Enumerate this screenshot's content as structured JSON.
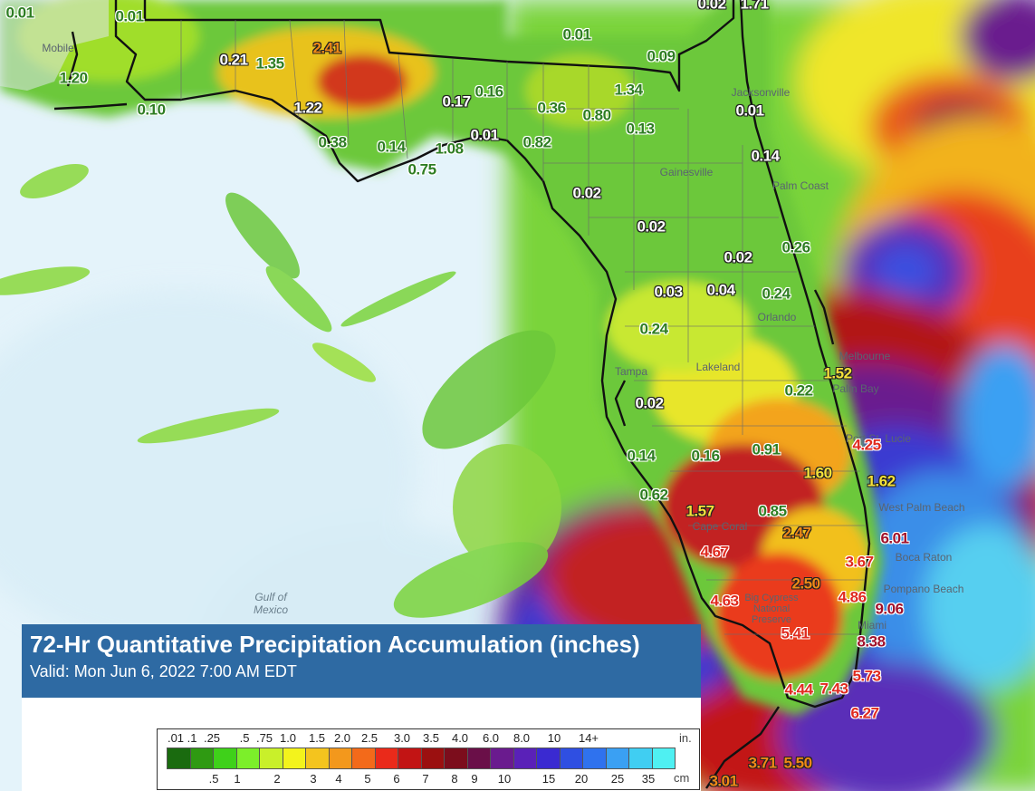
{
  "title": "72-Hr Quantitative Precipitation Accumulation (inches)",
  "subtitle": "Valid: Mon Jun 6, 2022 7:00 AM EDT",
  "water_label": [
    "Gulf of",
    "Mexico"
  ],
  "places": [
    "Mobile",
    "Jacksonville",
    "Gainesville",
    "Palm Coast",
    "Orlando",
    "Tampa",
    "Lakeland",
    "Melbourne",
    "Palm Bay",
    "Port St. Lucie",
    "West Palm Beach",
    "Boca Raton",
    "Pompano Beach",
    "Miami",
    "Cape Coral",
    "Big Cypress National Preserve"
  ],
  "legend": {
    "inch_unit": "in.",
    "cm_unit": "cm",
    "inch_labels": [
      ".01",
      ".1",
      ".25",
      ".5",
      ".75",
      "1.0",
      "1.5",
      "2.0",
      "2.5",
      "3.0",
      "3.5",
      "4.0",
      "6.0",
      "8.0",
      "10",
      "14+"
    ],
    "cm_labels": [
      ".5",
      "1",
      "2",
      "3",
      "4",
      "5",
      "6",
      "7",
      "8",
      "9",
      "10",
      "15",
      "20",
      "25",
      "35"
    ],
    "colors": [
      "#1a6b0f",
      "#2f9a12",
      "#3fd11a",
      "#7cef2a",
      "#c9f02a",
      "#f3f31c",
      "#f4c41e",
      "#f3981c",
      "#f36a1a",
      "#ea2a1a",
      "#c21414",
      "#9b1010",
      "#7c0d1c",
      "#6a0f48",
      "#6a1b8e",
      "#5a21b8",
      "#3a2ad1",
      "#2f4fe2",
      "#2f72ee",
      "#3aa0f3",
      "#40cef2",
      "#4ff0f2"
    ]
  },
  "precip_values": [
    {
      "text": "0.01",
      "c": "green"
    },
    {
      "text": "0.01",
      "c": "green"
    },
    {
      "text": "1.20",
      "c": "green"
    },
    {
      "text": "0.10",
      "c": "green"
    },
    {
      "text": "0.21",
      "c": "white"
    },
    {
      "text": "1.35",
      "c": "green"
    },
    {
      "text": "2.41",
      "c": "orange"
    },
    {
      "text": "1.22",
      "c": "white"
    },
    {
      "text": "0.38",
      "c": "green"
    },
    {
      "text": "0.14",
      "c": "green"
    },
    {
      "text": "0.75",
      "c": "green"
    },
    {
      "text": "1.08",
      "c": "green"
    },
    {
      "text": "0.17",
      "c": "white"
    },
    {
      "text": "0.16",
      "c": "green"
    },
    {
      "text": "0.01",
      "c": "white"
    },
    {
      "text": "0.36",
      "c": "green"
    },
    {
      "text": "0.80",
      "c": "green"
    },
    {
      "text": "0.82",
      "c": "green"
    },
    {
      "text": "1.34",
      "c": "green"
    },
    {
      "text": "0.01",
      "c": "green"
    },
    {
      "text": "0.09",
      "c": "green"
    },
    {
      "text": "0.13",
      "c": "green"
    },
    {
      "text": "0.02",
      "c": "white"
    },
    {
      "text": "1.71",
      "c": "white"
    },
    {
      "text": "0.01",
      "c": "white"
    },
    {
      "text": "0.14",
      "c": "white"
    },
    {
      "text": "0.02",
      "c": "white"
    },
    {
      "text": "0.26",
      "c": "green"
    },
    {
      "text": "0.02",
      "c": "white"
    },
    {
      "text": "0.02",
      "c": "white"
    },
    {
      "text": "0.03",
      "c": "white"
    },
    {
      "text": "0.04",
      "c": "white"
    },
    {
      "text": "0.24",
      "c": "green"
    },
    {
      "text": "0.24",
      "c": "green"
    },
    {
      "text": "1.52",
      "c": "yellow"
    },
    {
      "text": "0.22",
      "c": "green"
    },
    {
      "text": "0.02",
      "c": "white"
    },
    {
      "text": "4.25",
      "c": "red"
    },
    {
      "text": "0.14",
      "c": "green"
    },
    {
      "text": "0.16",
      "c": "green"
    },
    {
      "text": "0.91",
      "c": "green"
    },
    {
      "text": "1.60",
      "c": "yellow"
    },
    {
      "text": "1.62",
      "c": "yellow"
    },
    {
      "text": "0.62",
      "c": "green"
    },
    {
      "text": "1.57",
      "c": "yellow"
    },
    {
      "text": "0.85",
      "c": "green"
    },
    {
      "text": "2.47",
      "c": "orange"
    },
    {
      "text": "6.01",
      "c": "darkred"
    },
    {
      "text": "4.67",
      "c": "red"
    },
    {
      "text": "3.67",
      "c": "red"
    },
    {
      "text": "2.50",
      "c": "orange"
    },
    {
      "text": "4.63",
      "c": "red"
    },
    {
      "text": "4.86",
      "c": "red"
    },
    {
      "text": "9.06",
      "c": "darkred"
    },
    {
      "text": "5.41",
      "c": "red"
    },
    {
      "text": "8.38",
      "c": "darkred"
    },
    {
      "text": "5.73",
      "c": "red"
    },
    {
      "text": "4.44",
      "c": "red"
    },
    {
      "text": "7.43",
      "c": "red"
    },
    {
      "text": "6.27",
      "c": "red"
    },
    {
      "text": "3.71",
      "c": "orange"
    },
    {
      "text": "5.50",
      "c": "orange"
    },
    {
      "text": "3.01",
      "c": "orange"
    }
  ]
}
